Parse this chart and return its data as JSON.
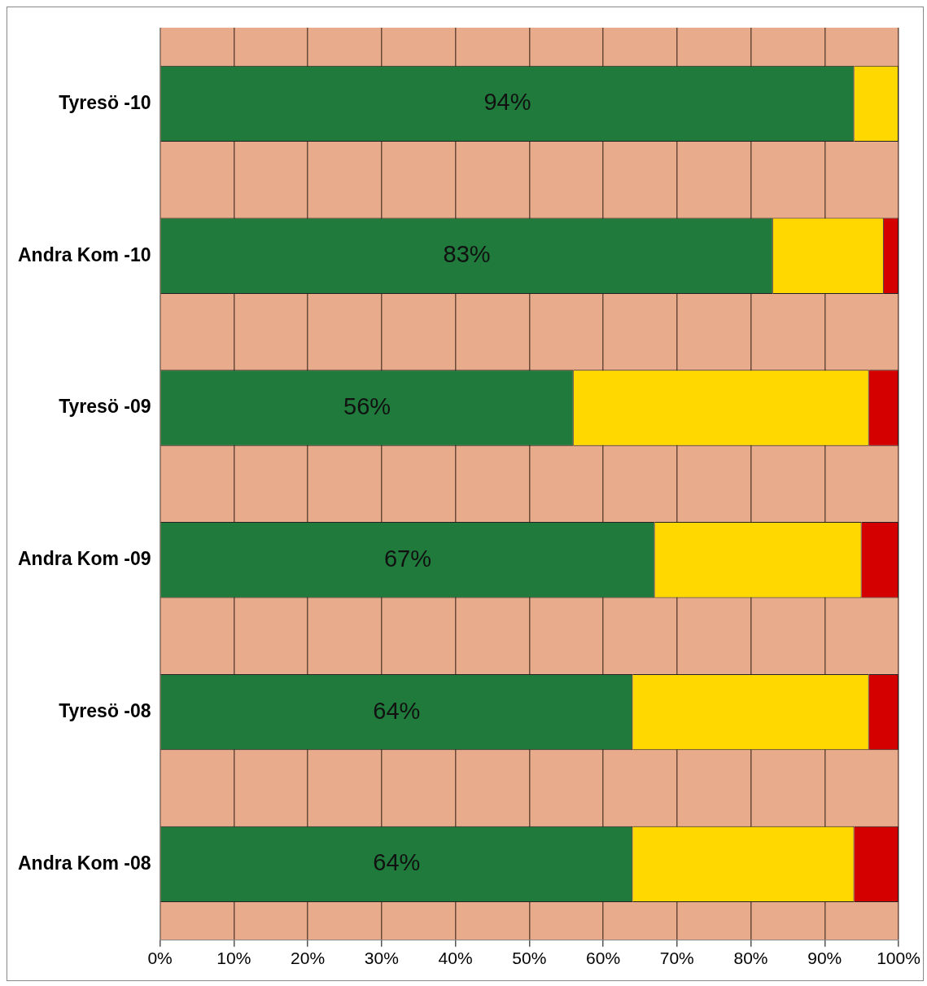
{
  "chart_data": {
    "type": "bar",
    "orientation": "horizontal",
    "stacked": true,
    "categories": [
      "Tyresö -10",
      "Andra Kom -10",
      "Tyresö -09",
      "Andra Kom -09",
      "Tyresö -08",
      "Andra Kom -08"
    ],
    "series": [
      {
        "color": "#1f7a3c",
        "values": [
          94,
          83,
          56,
          67,
          64,
          64
        ],
        "value_labels": [
          "94%",
          "83%",
          "56%",
          "67%",
          "64%",
          "64%"
        ]
      },
      {
        "color": "#ffd800",
        "values": [
          6,
          15,
          40,
          28,
          32,
          30
        ]
      },
      {
        "color": "#d40000",
        "values": [
          0,
          2,
          4,
          5,
          4,
          6
        ]
      }
    ],
    "xlim": [
      0,
      100
    ],
    "xticks": [
      {
        "value": 0,
        "label": "0%"
      },
      {
        "value": 10,
        "label": "10%"
      },
      {
        "value": 20,
        "label": "20%"
      },
      {
        "value": 30,
        "label": "30%"
      },
      {
        "value": 40,
        "label": "40%"
      },
      {
        "value": 50,
        "label": "50%"
      },
      {
        "value": 60,
        "label": "60%"
      },
      {
        "value": 70,
        "label": "70%"
      },
      {
        "value": 80,
        "label": "80%"
      },
      {
        "value": 90,
        "label": "90%"
      },
      {
        "value": 100,
        "label": "100%"
      }
    ],
    "grid": "x",
    "legend": false
  }
}
